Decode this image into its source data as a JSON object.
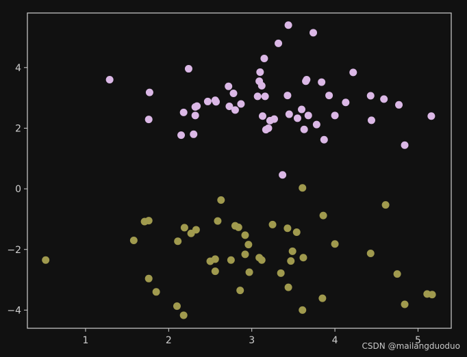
{
  "chart_data": {
    "type": "scatter",
    "title": "",
    "xlabel": "",
    "ylabel": "",
    "xlim": [
      0.3,
      5.4
    ],
    "ylim": [
      -4.6,
      5.8
    ],
    "xticks": [
      1,
      2,
      3,
      4,
      5
    ],
    "yticks": [
      -4,
      -2,
      0,
      2,
      4
    ],
    "grid": false,
    "legend": "none",
    "colors": {
      "background": "#111111",
      "axes": "#d0d0d0"
    },
    "series": [
      {
        "color": "#dbb8e6",
        "points": [
          [
            1.29,
            3.6
          ],
          [
            1.77,
            3.18
          ],
          [
            1.76,
            2.29
          ],
          [
            2.15,
            1.77
          ],
          [
            2.18,
            2.52
          ],
          [
            2.24,
            3.96
          ],
          [
            2.3,
            1.8
          ],
          [
            2.32,
            2.7
          ],
          [
            2.32,
            2.42
          ],
          [
            2.34,
            2.73
          ],
          [
            2.47,
            2.88
          ],
          [
            2.56,
            2.92
          ],
          [
            2.57,
            2.87
          ],
          [
            2.72,
            3.38
          ],
          [
            2.73,
            2.72
          ],
          [
            2.78,
            3.15
          ],
          [
            2.8,
            2.6
          ],
          [
            2.87,
            2.8
          ],
          [
            3.07,
            3.05
          ],
          [
            3.09,
            3.55
          ],
          [
            3.1,
            3.85
          ],
          [
            3.12,
            3.4
          ],
          [
            3.13,
            2.4
          ],
          [
            3.15,
            4.3
          ],
          [
            3.16,
            3.05
          ],
          [
            3.17,
            1.95
          ],
          [
            3.2,
            2.0
          ],
          [
            3.22,
            2.25
          ],
          [
            3.27,
            2.3
          ],
          [
            3.32,
            4.8
          ],
          [
            3.37,
            0.46
          ],
          [
            3.43,
            3.08
          ],
          [
            3.44,
            5.4
          ],
          [
            3.45,
            2.46
          ],
          [
            3.55,
            2.33
          ],
          [
            3.6,
            2.62
          ],
          [
            3.63,
            1.96
          ],
          [
            3.65,
            3.55
          ],
          [
            3.66,
            3.6
          ],
          [
            3.68,
            2.42
          ],
          [
            3.74,
            5.15
          ],
          [
            3.78,
            2.12
          ],
          [
            3.84,
            3.52
          ],
          [
            3.87,
            1.62
          ],
          [
            3.93,
            3.08
          ],
          [
            4.0,
            2.42
          ],
          [
            4.13,
            2.85
          ],
          [
            4.22,
            3.84
          ],
          [
            4.43,
            3.07
          ],
          [
            4.44,
            2.26
          ],
          [
            4.59,
            2.96
          ],
          [
            4.77,
            2.77
          ],
          [
            4.84,
            1.44
          ],
          [
            5.16,
            2.4
          ]
        ]
      },
      {
        "color": "#a09a4e",
        "points": [
          [
            0.52,
            -2.35
          ],
          [
            1.58,
            -1.7
          ],
          [
            1.71,
            -1.08
          ],
          [
            1.76,
            -1.05
          ],
          [
            1.76,
            -2.96
          ],
          [
            1.85,
            -3.4
          ],
          [
            2.1,
            -3.87
          ],
          [
            2.11,
            -1.73
          ],
          [
            2.18,
            -4.17
          ],
          [
            2.19,
            -1.28
          ],
          [
            2.27,
            -1.47
          ],
          [
            2.33,
            -1.35
          ],
          [
            2.5,
            -2.39
          ],
          [
            2.56,
            -2.32
          ],
          [
            2.56,
            -2.72
          ],
          [
            2.59,
            -1.06
          ],
          [
            2.63,
            -0.37
          ],
          [
            2.75,
            -2.35
          ],
          [
            2.8,
            -1.22
          ],
          [
            2.84,
            -1.27
          ],
          [
            2.86,
            -3.35
          ],
          [
            2.92,
            -1.53
          ],
          [
            2.92,
            -2.16
          ],
          [
            2.96,
            -1.84
          ],
          [
            2.97,
            -2.75
          ],
          [
            3.09,
            -2.27
          ],
          [
            3.12,
            -2.35
          ],
          [
            3.25,
            -1.18
          ],
          [
            3.35,
            -2.78
          ],
          [
            3.43,
            -1.3
          ],
          [
            3.44,
            -3.25
          ],
          [
            3.47,
            -2.38
          ],
          [
            3.49,
            -2.06
          ],
          [
            3.54,
            -1.43
          ],
          [
            3.61,
            -4.0
          ],
          [
            3.62,
            -2.27
          ],
          [
            3.61,
            0.03
          ],
          [
            3.85,
            -3.61
          ],
          [
            3.86,
            -0.88
          ],
          [
            4.0,
            -1.82
          ],
          [
            4.43,
            -2.13
          ],
          [
            4.61,
            -0.53
          ],
          [
            4.75,
            -2.81
          ],
          [
            4.84,
            -3.81
          ],
          [
            5.11,
            -3.47
          ],
          [
            5.17,
            -3.49
          ]
        ]
      }
    ]
  },
  "watermark": "CSDN @mailangduoduo"
}
